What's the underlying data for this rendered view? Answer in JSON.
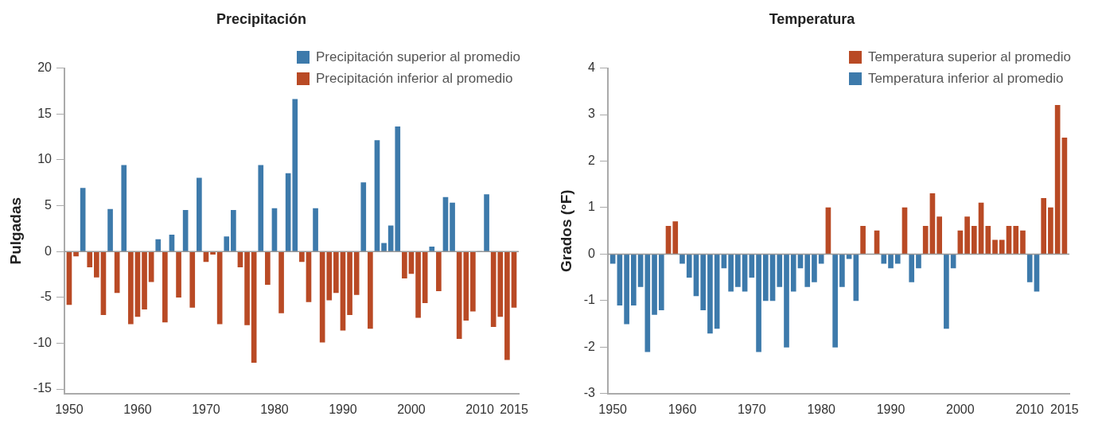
{
  "chart_data": [
    {
      "type": "bar",
      "title": "Precipitación",
      "ylabel": "Pulgadas",
      "legend": "top right",
      "x": [
        1950,
        1951,
        1952,
        1953,
        1954,
        1955,
        1956,
        1957,
        1958,
        1959,
        1960,
        1961,
        1962,
        1963,
        1964,
        1965,
        1966,
        1967,
        1968,
        1969,
        1970,
        1971,
        1972,
        1973,
        1974,
        1975,
        1976,
        1977,
        1978,
        1979,
        1980,
        1981,
        1982,
        1983,
        1984,
        1985,
        1986,
        1987,
        1988,
        1989,
        1990,
        1991,
        1992,
        1993,
        1994,
        1995,
        1996,
        1997,
        1998,
        1999,
        2000,
        2001,
        2002,
        2003,
        2004,
        2005,
        2006,
        2007,
        2008,
        2009,
        2010,
        2011,
        2012,
        2013,
        2014,
        2015
      ],
      "xlim": [
        1949.3,
        2015.7
      ],
      "xticks": [
        1950,
        1960,
        1970,
        1980,
        1990,
        2000,
        2010,
        2015
      ],
      "ylim": [
        -15.5,
        20
      ],
      "yticks": [
        -15,
        -10,
        -5,
        0,
        5,
        10,
        15,
        20
      ],
      "series": [
        {
          "name": "Precipitación superior al promedio",
          "color": "#3d7aab",
          "values": [
            null,
            null,
            6.9,
            null,
            null,
            null,
            4.6,
            null,
            9.4,
            null,
            null,
            null,
            null,
            1.3,
            null,
            1.8,
            null,
            4.5,
            null,
            8.0,
            null,
            null,
            null,
            1.6,
            4.5,
            null,
            null,
            null,
            9.4,
            null,
            4.7,
            null,
            8.5,
            16.6,
            null,
            null,
            4.7,
            null,
            null,
            null,
            null,
            null,
            null,
            7.5,
            null,
            12.1,
            0.9,
            2.8,
            13.6,
            null,
            null,
            null,
            null,
            0.5,
            null,
            5.9,
            5.3,
            null,
            null,
            null,
            0,
            6.2,
            null,
            null,
            null,
            null
          ]
        },
        {
          "name": "Precipitación inferior al promedio",
          "color": "#b94a25",
          "values": [
            -5.8,
            -0.5,
            null,
            -1.7,
            -2.8,
            -6.9,
            null,
            -4.5,
            null,
            -7.9,
            -7.1,
            -6.3,
            -3.3,
            null,
            -7.7,
            null,
            -5.0,
            null,
            -6.1,
            null,
            -1.1,
            -0.3,
            -7.9,
            null,
            null,
            -1.7,
            -8.0,
            -12.1,
            null,
            -3.6,
            null,
            -6.7,
            null,
            null,
            -1.1,
            -5.5,
            null,
            -9.9,
            -5.3,
            -4.5,
            -8.6,
            -6.9,
            -4.7,
            null,
            -8.4,
            null,
            null,
            null,
            null,
            -2.9,
            -2.4,
            -7.2,
            -5.6,
            null,
            -4.3,
            null,
            null,
            -9.5,
            -7.5,
            -6.5,
            null,
            null,
            -8.2,
            -7.1,
            -11.8,
            -6.1
          ]
        }
      ]
    },
    {
      "type": "bar",
      "title": "Temperatura",
      "ylabel": "Grados (°F)",
      "legend": "top right",
      "x": [
        1950,
        1951,
        1952,
        1953,
        1954,
        1955,
        1956,
        1957,
        1958,
        1959,
        1960,
        1961,
        1962,
        1963,
        1964,
        1965,
        1966,
        1967,
        1968,
        1969,
        1970,
        1971,
        1972,
        1973,
        1974,
        1975,
        1976,
        1977,
        1978,
        1979,
        1980,
        1981,
        1982,
        1983,
        1984,
        1985,
        1986,
        1987,
        1988,
        1989,
        1990,
        1991,
        1992,
        1993,
        1994,
        1995,
        1996,
        1997,
        1998,
        1999,
        2000,
        2001,
        2002,
        2003,
        2004,
        2005,
        2006,
        2007,
        2008,
        2009,
        2010,
        2011,
        2012,
        2013,
        2014,
        2015
      ],
      "xlim": [
        1949.3,
        2015.7
      ],
      "xticks": [
        1950,
        1960,
        1970,
        1980,
        1990,
        2000,
        2010,
        2015
      ],
      "ylim": [
        -3,
        4
      ],
      "yticks": [
        -3,
        -2,
        -1,
        0,
        1,
        2,
        3,
        4
      ],
      "series": [
        {
          "name": "Temperatura superior al promedio",
          "color": "#b94a25",
          "values": [
            null,
            null,
            null,
            null,
            null,
            null,
            null,
            null,
            0.6,
            0.7,
            null,
            null,
            null,
            null,
            null,
            null,
            null,
            null,
            null,
            null,
            null,
            null,
            null,
            null,
            null,
            null,
            null,
            null,
            null,
            null,
            null,
            1.0,
            null,
            null,
            null,
            null,
            0.6,
            0,
            0.5,
            null,
            null,
            null,
            1.0,
            null,
            null,
            0.6,
            1.3,
            0.8,
            null,
            null,
            0.5,
            0.8,
            0.6,
            1.1,
            0.6,
            0.3,
            0.3,
            0.6,
            0.6,
            0.5,
            null,
            null,
            1.2,
            1.0,
            3.2,
            2.5
          ]
        },
        {
          "name": "Temperatura inferior al promedio",
          "color": "#3d7aab",
          "values": [
            -0.2,
            -1.1,
            -1.5,
            -1.1,
            -0.7,
            -2.1,
            -1.3,
            -1.2,
            null,
            null,
            -0.2,
            -0.5,
            -0.9,
            -1.2,
            -1.7,
            -1.6,
            -0.3,
            -0.8,
            -0.7,
            -0.8,
            -0.5,
            -2.1,
            -1.0,
            -1.0,
            -0.7,
            -2.0,
            -0.8,
            -0.3,
            -0.7,
            -0.6,
            -0.2,
            null,
            -2.0,
            -0.7,
            -0.1,
            -1.0,
            null,
            null,
            null,
            -0.2,
            -0.3,
            -0.2,
            null,
            -0.6,
            -0.3,
            null,
            null,
            null,
            -1.6,
            -0.3,
            null,
            null,
            null,
            null,
            null,
            null,
            null,
            null,
            null,
            null,
            -0.6,
            -0.8,
            null,
            null,
            null,
            null
          ]
        }
      ]
    }
  ]
}
